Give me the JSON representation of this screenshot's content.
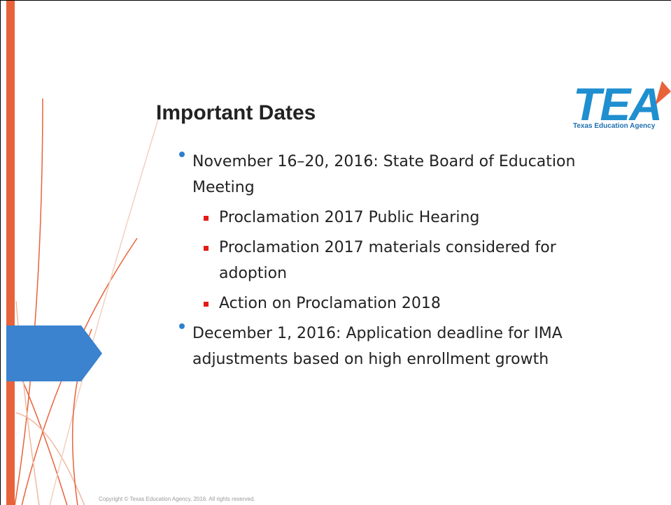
{
  "header": {
    "title": "Important Dates",
    "logo": {
      "mark": "TEA",
      "name": "Texas Education Agency"
    }
  },
  "bullets": [
    {
      "text": "November 16–20, 2016: State Board of Education Meeting",
      "items": [
        "Proclamation 2017 Public Hearing",
        "Proclamation 2017 materials considered for adoption",
        "Action on Proclamation 2018"
      ]
    },
    {
      "text": "December 1, 2016: Application deadline for IMA adjustments based on high enrollment growth",
      "items": []
    }
  ],
  "footer": {
    "copyright": "Copyright © Texas Education Agency, 2016. All rights reserved."
  }
}
